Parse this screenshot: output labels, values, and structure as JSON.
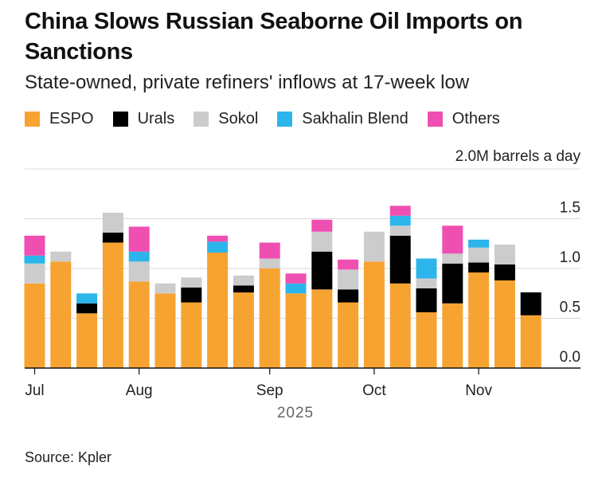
{
  "title": "China Slows Russian Seaborne Oil Imports on Sanctions",
  "subtitle": "State-owned, private refiners' inflows at 17-week low",
  "source": "Source: Kpler",
  "colors": {
    "ESPO": "#f7a332",
    "Urals": "#000000",
    "Sokol": "#cccccc",
    "Sakhalin Blend": "#2cb5ea",
    "Others": "#ef4fb1"
  },
  "chart_data": {
    "type": "bar",
    "stacked": true,
    "unit_label": "2.0M barrels a day",
    "year_label": "2025",
    "y_ticks": [
      "1.5",
      "1.0",
      "0.5",
      "0.0"
    ],
    "ylim": [
      0,
      2.0
    ],
    "grid": true,
    "legend_position": "top-left",
    "x_month_labels": [
      {
        "label": "Jul",
        "bar_index": 0
      },
      {
        "label": "Aug",
        "bar_index": 4
      },
      {
        "label": "Sep",
        "bar_index": 9
      },
      {
        "label": "Oct",
        "bar_index": 13
      },
      {
        "label": "Nov",
        "bar_index": 17
      }
    ],
    "series": [
      {
        "name": "ESPO",
        "values": [
          0.85,
          1.07,
          0.55,
          1.26,
          0.87,
          0.75,
          0.66,
          1.16,
          0.76,
          1.0,
          0.75,
          0.79,
          0.66,
          1.07,
          0.85,
          0.56,
          0.65,
          0.96,
          0.88,
          0.53
        ]
      },
      {
        "name": "Urals",
        "values": [
          0,
          0,
          0.1,
          0.1,
          0,
          0,
          0.15,
          0,
          0.07,
          0,
          0,
          0.38,
          0.13,
          0,
          0.48,
          0.24,
          0.4,
          0.1,
          0.16,
          0.23
        ]
      },
      {
        "name": "Sokol",
        "values": [
          0.2,
          0.1,
          0,
          0.2,
          0.2,
          0.1,
          0.1,
          0,
          0.1,
          0.1,
          0,
          0.2,
          0.2,
          0.3,
          0.1,
          0.1,
          0.1,
          0.15,
          0.2,
          0
        ]
      },
      {
        "name": "Sakhalin Blend",
        "values": [
          0.08,
          0,
          0.1,
          0,
          0.1,
          0,
          0,
          0.11,
          0,
          0,
          0.1,
          0,
          0,
          0,
          0.1,
          0.2,
          0,
          0.08,
          0,
          0
        ]
      },
      {
        "name": "Others",
        "values": [
          0.2,
          0,
          0,
          0,
          0.25,
          0,
          0,
          0.06,
          0,
          0.16,
          0.1,
          0.12,
          0.1,
          0,
          0.1,
          0,
          0.28,
          0,
          0,
          0
        ]
      }
    ]
  }
}
